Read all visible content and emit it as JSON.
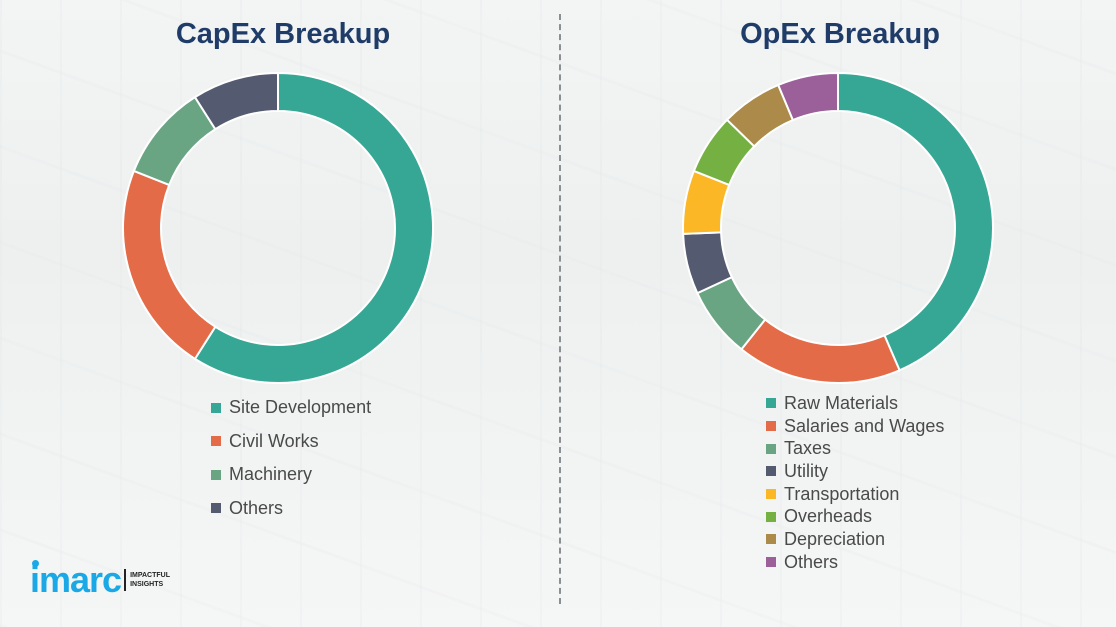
{
  "chart_data": [
    {
      "type": "pie",
      "variant": "donut",
      "title": "CapEx Breakup",
      "categories": [
        "Site Development",
        "Civil Works",
        "Machinery",
        "Others"
      ],
      "values": [
        59,
        22,
        10,
        9
      ],
      "colors": [
        "#36a795",
        "#e46b47",
        "#6aa583",
        "#545a70"
      ],
      "legend": "bottom"
    },
    {
      "type": "pie",
      "variant": "donut",
      "title": "OpEx Breakup",
      "categories": [
        "Raw Materials",
        "Salaries and Wages",
        "Taxes",
        "Utility",
        "Transportation",
        "Overheads",
        "Depreciation",
        "Others"
      ],
      "values": [
        43.5,
        17.2,
        7.4,
        6.3,
        6.6,
        6.3,
        6.4,
        6.3
      ],
      "colors": [
        "#36a795",
        "#e46b47",
        "#6aa583",
        "#545a70",
        "#fbb726",
        "#75b043",
        "#ab8a4a",
        "#9b5f99"
      ],
      "legend": "bottom"
    }
  ],
  "logo": {
    "text": "imarc",
    "tagline_1": "IMPACTFUL",
    "tagline_2": "INSIGHTS"
  }
}
